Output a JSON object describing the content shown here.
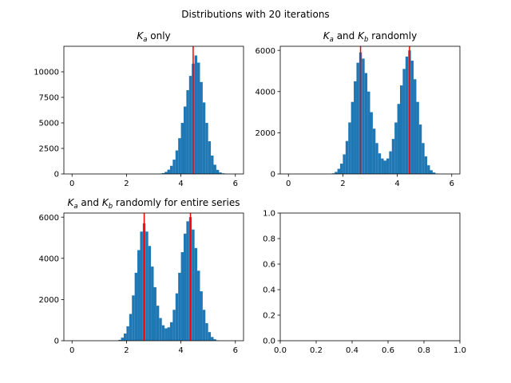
{
  "figure": {
    "suptitle": "Distributions with 20 iterations"
  },
  "chart_data": [
    {
      "type": "histogram",
      "title_parts": [
        "K",
        "a",
        " only"
      ],
      "xlim": [
        -0.3,
        6.3
      ],
      "ylim": [
        0,
        12500
      ],
      "xticks": [
        0,
        2,
        4,
        6
      ],
      "yticks": [
        0,
        2500,
        5000,
        7500,
        10000
      ],
      "bar_color": "#1f77b4",
      "bin_width": 0.1,
      "bins": [
        [
          3.2,
          30
        ],
        [
          3.3,
          80
        ],
        [
          3.4,
          200
        ],
        [
          3.5,
          420
        ],
        [
          3.6,
          800
        ],
        [
          3.7,
          1400
        ],
        [
          3.8,
          2300
        ],
        [
          3.9,
          3500
        ],
        [
          4.0,
          5000
        ],
        [
          4.1,
          6600
        ],
        [
          4.2,
          8200
        ],
        [
          4.3,
          9600
        ],
        [
          4.4,
          10800
        ],
        [
          4.5,
          11600
        ],
        [
          4.6,
          10900
        ],
        [
          4.7,
          9000
        ],
        [
          4.8,
          7000
        ],
        [
          4.9,
          5000
        ],
        [
          5.0,
          3200
        ],
        [
          5.1,
          1800
        ],
        [
          5.2,
          900
        ],
        [
          5.3,
          400
        ],
        [
          5.4,
          150
        ],
        [
          5.5,
          60
        ],
        [
          5.6,
          20
        ]
      ],
      "vlines": [
        4.45
      ],
      "vline_color": "#ff0000"
    },
    {
      "type": "histogram",
      "title_parts": [
        "K",
        "a",
        " and ",
        "K",
        "b",
        " randomly"
      ],
      "xlim": [
        -0.3,
        6.3
      ],
      "ylim": [
        0,
        6200
      ],
      "xticks": [
        0,
        2,
        4,
        6
      ],
      "yticks": [
        0,
        2000,
        4000,
        6000
      ],
      "bar_color": "#1f77b4",
      "bin_width": 0.1,
      "bins": [
        [
          1.6,
          30
        ],
        [
          1.7,
          100
        ],
        [
          1.8,
          250
        ],
        [
          1.9,
          500
        ],
        [
          2.0,
          950
        ],
        [
          2.1,
          1600
        ],
        [
          2.2,
          2500
        ],
        [
          2.3,
          3500
        ],
        [
          2.4,
          4500
        ],
        [
          2.5,
          5400
        ],
        [
          2.6,
          5900
        ],
        [
          2.7,
          5600
        ],
        [
          2.8,
          4900
        ],
        [
          2.9,
          4000
        ],
        [
          3.0,
          3000
        ],
        [
          3.1,
          2200
        ],
        [
          3.2,
          1500
        ],
        [
          3.3,
          1000
        ],
        [
          3.4,
          750
        ],
        [
          3.5,
          650
        ],
        [
          3.6,
          750
        ],
        [
          3.7,
          1100
        ],
        [
          3.8,
          1700
        ],
        [
          3.9,
          2500
        ],
        [
          4.0,
          3400
        ],
        [
          4.1,
          4300
        ],
        [
          4.2,
          5100
        ],
        [
          4.3,
          5700
        ],
        [
          4.4,
          6000
        ],
        [
          4.5,
          5500
        ],
        [
          4.6,
          4600
        ],
        [
          4.7,
          3500
        ],
        [
          4.8,
          2400
        ],
        [
          4.9,
          1500
        ],
        [
          5.0,
          850
        ],
        [
          5.1,
          420
        ],
        [
          5.2,
          180
        ],
        [
          5.3,
          70
        ],
        [
          5.4,
          20
        ]
      ],
      "vlines": [
        2.65,
        4.45
      ],
      "vline_color": "#ff0000"
    },
    {
      "type": "histogram",
      "title_parts": [
        "K",
        "a",
        " and ",
        "K",
        "b",
        " randomly for entire series"
      ],
      "xlim": [
        -0.3,
        6.3
      ],
      "ylim": [
        0,
        6200
      ],
      "xticks": [
        0,
        2,
        4,
        6
      ],
      "yticks": [
        0,
        2000,
        4000,
        6000
      ],
      "bar_color": "#1f77b4",
      "bin_width": 0.1,
      "bins": [
        [
          1.7,
          40
        ],
        [
          1.8,
          150
        ],
        [
          1.9,
          350
        ],
        [
          2.0,
          700
        ],
        [
          2.1,
          1300
        ],
        [
          2.2,
          2200
        ],
        [
          2.3,
          3300
        ],
        [
          2.4,
          4400
        ],
        [
          2.5,
          5300
        ],
        [
          2.6,
          5700
        ],
        [
          2.7,
          5300
        ],
        [
          2.8,
          4600
        ],
        [
          2.9,
          3600
        ],
        [
          3.0,
          2600
        ],
        [
          3.1,
          1700
        ],
        [
          3.2,
          1100
        ],
        [
          3.3,
          750
        ],
        [
          3.4,
          600
        ],
        [
          3.5,
          650
        ],
        [
          3.6,
          900
        ],
        [
          3.7,
          1500
        ],
        [
          3.8,
          2300
        ],
        [
          3.9,
          3300
        ],
        [
          4.0,
          4300
        ],
        [
          4.1,
          5200
        ],
        [
          4.2,
          5800
        ],
        [
          4.3,
          6000
        ],
        [
          4.4,
          5400
        ],
        [
          4.5,
          4500
        ],
        [
          4.6,
          3400
        ],
        [
          4.7,
          2400
        ],
        [
          4.8,
          1500
        ],
        [
          4.9,
          850
        ],
        [
          5.0,
          420
        ],
        [
          5.1,
          180
        ],
        [
          5.2,
          70
        ],
        [
          5.3,
          20
        ]
      ],
      "vlines": [
        2.65,
        4.35
      ],
      "vline_color": "#ff0000"
    },
    {
      "type": "empty",
      "xlim": [
        0,
        1
      ],
      "ylim": [
        0,
        1
      ],
      "xticks": [
        0.0,
        0.2,
        0.4,
        0.6,
        0.8,
        1.0
      ],
      "xtick_labels": [
        "0.0",
        "0.2",
        "0.4",
        "0.6",
        "0.8",
        "1.0"
      ],
      "yticks": [
        0.0,
        0.2,
        0.4,
        0.6,
        0.8,
        1.0
      ],
      "ytick_labels": [
        "0.0",
        "0.2",
        "0.4",
        "0.6",
        "0.8",
        "1.0"
      ]
    }
  ]
}
